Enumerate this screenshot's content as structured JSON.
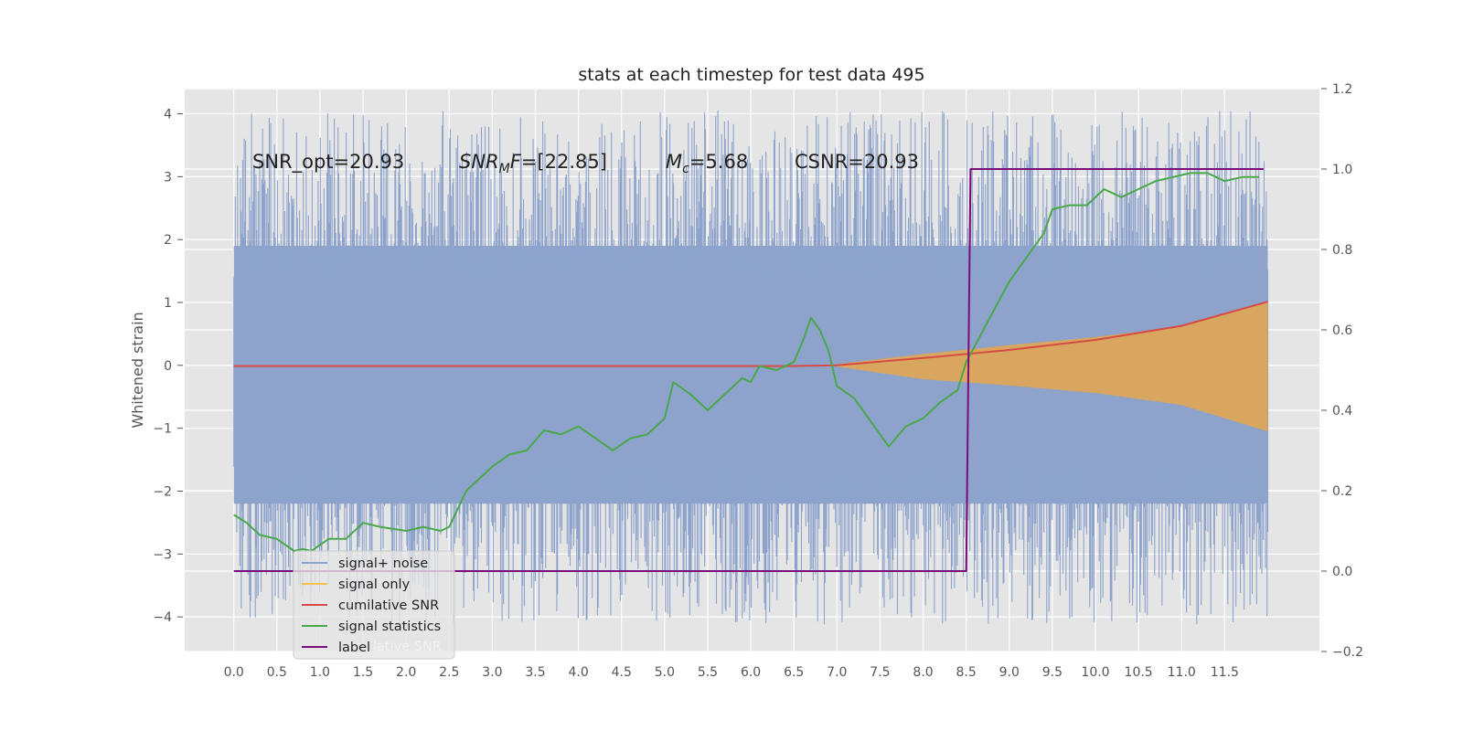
{
  "chart_data": {
    "type": "line",
    "title": "stats at each timestep for test data 495",
    "xlabel": "",
    "ylabel": "Whitened strain",
    "xlim": [
      -0.57,
      12.6
    ],
    "ylim": [
      -4.55,
      4.4
    ],
    "y2lim": [
      -0.2,
      1.2
    ],
    "x_ticks": [
      0.0,
      0.5,
      1.0,
      1.5,
      2.0,
      2.5,
      3.0,
      3.5,
      4.0,
      4.5,
      5.0,
      5.5,
      6.0,
      6.5,
      7.0,
      7.5,
      8.0,
      8.5,
      9.0,
      9.5,
      10.0,
      10.5,
      11.0,
      11.5
    ],
    "x_tick_labels": [
      "0.0",
      "0.5",
      "1.0",
      "1.5",
      "2.0",
      "2.5",
      "3.0",
      "3.5",
      "4.0",
      "4.5",
      "5.0",
      "5.5",
      "6.0",
      "6.5",
      "7.0",
      "7.5",
      "8.0",
      "8.5",
      "9.0",
      "9.5",
      "10.0",
      "10.5",
      "11.0",
      "11.5"
    ],
    "y_ticks": [
      -4,
      -3,
      -2,
      -1,
      0,
      1,
      2,
      3,
      4
    ],
    "y_tick_labels": [
      "−4",
      "−3",
      "−2",
      "−1",
      "0",
      "1",
      "2",
      "3",
      "4"
    ],
    "y2_ticks": [
      -0.2,
      0.0,
      0.2,
      0.4,
      0.6,
      0.8,
      1.0,
      1.2
    ],
    "y2_tick_labels": [
      "−0.2",
      "0.0",
      "0.2",
      "0.4",
      "0.6",
      "0.8",
      "1.0",
      "1.2"
    ],
    "grid": true,
    "legend_position": "lower-left",
    "annotations": {
      "snr_opt": "SNR_opt=20.93",
      "snr_mf_main": "SNR",
      "snr_mf_sub": "M",
      "snr_mf_f": "F",
      "snr_mf_value": "=[22.85]",
      "mc_main": "M",
      "mc_sub": "c",
      "mc_value": "=5.68",
      "csnr": "CSNR=20.93"
    },
    "legend_entries": [
      "signal+ noise",
      "signal only",
      "cumilative SNR",
      "signal statistics",
      "label"
    ],
    "legend_hidden_text": "lative SNR",
    "series": [
      {
        "name": "signal+ noise",
        "kind": "noise-band",
        "axis": "left",
        "color": "#8da3cc",
        "x_range": [
          0.0,
          12.0
        ],
        "envelope_upper": 1.9,
        "envelope_lower": -2.2,
        "spike_max": 4.05,
        "spike_min": -4.12
      },
      {
        "name": "signal only",
        "kind": "chirp-envelope",
        "axis": "left",
        "color": "#d8a65e",
        "x": [
          7.0,
          8.0,
          9.0,
          10.0,
          11.0,
          12.0
        ],
        "upper": [
          0.02,
          0.18,
          0.32,
          0.45,
          0.62,
          1.0
        ],
        "lower": [
          -0.02,
          -0.22,
          -0.32,
          -0.44,
          -0.63,
          -1.05
        ]
      },
      {
        "name": "cumilative SNR",
        "kind": "line",
        "axis": "right",
        "color": "#d64c45",
        "x": [
          0.0,
          6.5,
          7.0,
          8.0,
          9.0,
          10.0,
          11.0,
          12.0
        ],
        "values": [
          0.51,
          0.51,
          0.512,
          0.53,
          0.55,
          0.575,
          0.61,
          0.67
        ]
      },
      {
        "name": "signal statistics",
        "kind": "line",
        "axis": "right",
        "color": "#4aa84a",
        "x": [
          0.0,
          0.15,
          0.3,
          0.5,
          0.7,
          0.8,
          0.9,
          1.1,
          1.3,
          1.5,
          1.7,
          2.0,
          2.2,
          2.4,
          2.5,
          2.7,
          3.0,
          3.2,
          3.4,
          3.6,
          3.8,
          4.0,
          4.2,
          4.4,
          4.6,
          4.8,
          5.0,
          5.1,
          5.3,
          5.5,
          5.7,
          5.9,
          6.0,
          6.1,
          6.3,
          6.5,
          6.6,
          6.7,
          6.8,
          6.9,
          7.0,
          7.2,
          7.4,
          7.6,
          7.8,
          8.0,
          8.2,
          8.4,
          8.5,
          8.6,
          8.8,
          9.0,
          9.2,
          9.4,
          9.5,
          9.7,
          9.9,
          10.1,
          10.3,
          10.5,
          10.7,
          10.9,
          11.1,
          11.3,
          11.5,
          11.7,
          11.9
        ],
        "values": [
          0.14,
          0.12,
          0.09,
          0.08,
          0.05,
          0.055,
          0.05,
          0.08,
          0.08,
          0.12,
          0.11,
          0.1,
          0.11,
          0.1,
          0.11,
          0.2,
          0.26,
          0.29,
          0.3,
          0.35,
          0.34,
          0.36,
          0.33,
          0.3,
          0.33,
          0.34,
          0.38,
          0.47,
          0.44,
          0.4,
          0.44,
          0.48,
          0.47,
          0.51,
          0.5,
          0.52,
          0.57,
          0.63,
          0.6,
          0.55,
          0.46,
          0.43,
          0.37,
          0.31,
          0.36,
          0.38,
          0.42,
          0.45,
          0.52,
          0.56,
          0.64,
          0.72,
          0.78,
          0.84,
          0.9,
          0.91,
          0.91,
          0.95,
          0.93,
          0.95,
          0.97,
          0.98,
          0.99,
          0.99,
          0.97,
          0.98,
          0.98
        ]
      },
      {
        "name": "label",
        "kind": "step",
        "axis": "right",
        "color": "#7b0a7b",
        "x": [
          0.0,
          8.5,
          8.55,
          11.95
        ],
        "values": [
          0.0,
          0.0,
          1.0,
          1.0
        ]
      }
    ]
  },
  "colors": {
    "axes_bg": "#e5e5e5",
    "grid": "#ffffff",
    "tick_text": "#555555"
  }
}
